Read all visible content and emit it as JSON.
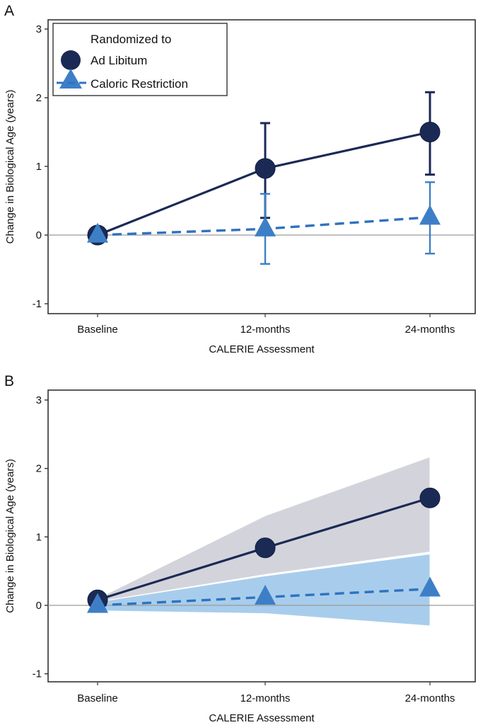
{
  "colors": {
    "ad_libitum": "#1b2a55",
    "caloric_restriction": "#3d7fc7",
    "cr_line": "#2f72bf",
    "al_band": "#d3d4db",
    "cr_band": "#a8cdec",
    "zero_line": "#9a9a9a",
    "axis": "#333333"
  },
  "chart_data": [
    {
      "panel": "A",
      "type": "line",
      "title": "",
      "xlabel": "CALERIE Assessment",
      "ylabel": "Change in Biological Age (years)",
      "categories": [
        "Baseline",
        "12-months",
        "24-months"
      ],
      "yticks": [
        3,
        2,
        1,
        0,
        -1
      ],
      "ytick_labels": [
        "3",
        "2",
        "1",
        "0",
        "-1"
      ],
      "ylim": [
        -1.15,
        3.15
      ],
      "reference_line": 0,
      "grid": false,
      "legend": {
        "title": "Randomized to",
        "position": "top-left",
        "entries": [
          "Ad Libitum",
          "Caloric Restriction"
        ]
      },
      "uncertainty": "error-bars",
      "series": [
        {
          "name": "Ad Libitum",
          "marker": "circle",
          "line": "solid",
          "values": [
            0.0,
            0.97,
            1.5
          ],
          "lower": [
            null,
            0.25,
            0.88
          ],
          "upper": [
            null,
            1.63,
            2.08
          ]
        },
        {
          "name": "Caloric Restriction",
          "marker": "triangle",
          "line": "dashed",
          "values": [
            0.0,
            0.09,
            0.26
          ],
          "lower": [
            null,
            -0.42,
            -0.27
          ],
          "upper": [
            null,
            0.6,
            0.77
          ]
        }
      ]
    },
    {
      "panel": "B",
      "type": "line",
      "title": "",
      "xlabel": "CALERIE Assessment",
      "ylabel": "Change in Biological Age (years)",
      "categories": [
        "Baseline",
        "12-months",
        "24-months"
      ],
      "yticks": [
        3,
        2,
        1,
        0,
        -1
      ],
      "ytick_labels": [
        "3",
        "2",
        "1",
        "0",
        "-1"
      ],
      "ylim": [
        -1.15,
        3.15
      ],
      "reference_line": 0,
      "grid": false,
      "uncertainty": "confidence-band",
      "series": [
        {
          "name": "Ad Libitum",
          "marker": "circle",
          "line": "solid",
          "values": [
            0.08,
            0.84,
            1.57
          ],
          "lower": [
            0.05,
            0.45,
            0.78
          ],
          "upper": [
            0.1,
            1.31,
            2.17
          ]
        },
        {
          "name": "Caloric Restriction",
          "marker": "triangle",
          "line": "dashed",
          "values": [
            0.0,
            0.12,
            0.24
          ],
          "lower": [
            -0.08,
            -0.12,
            -0.3
          ],
          "upper": [
            0.05,
            0.43,
            0.75
          ]
        }
      ]
    }
  ]
}
